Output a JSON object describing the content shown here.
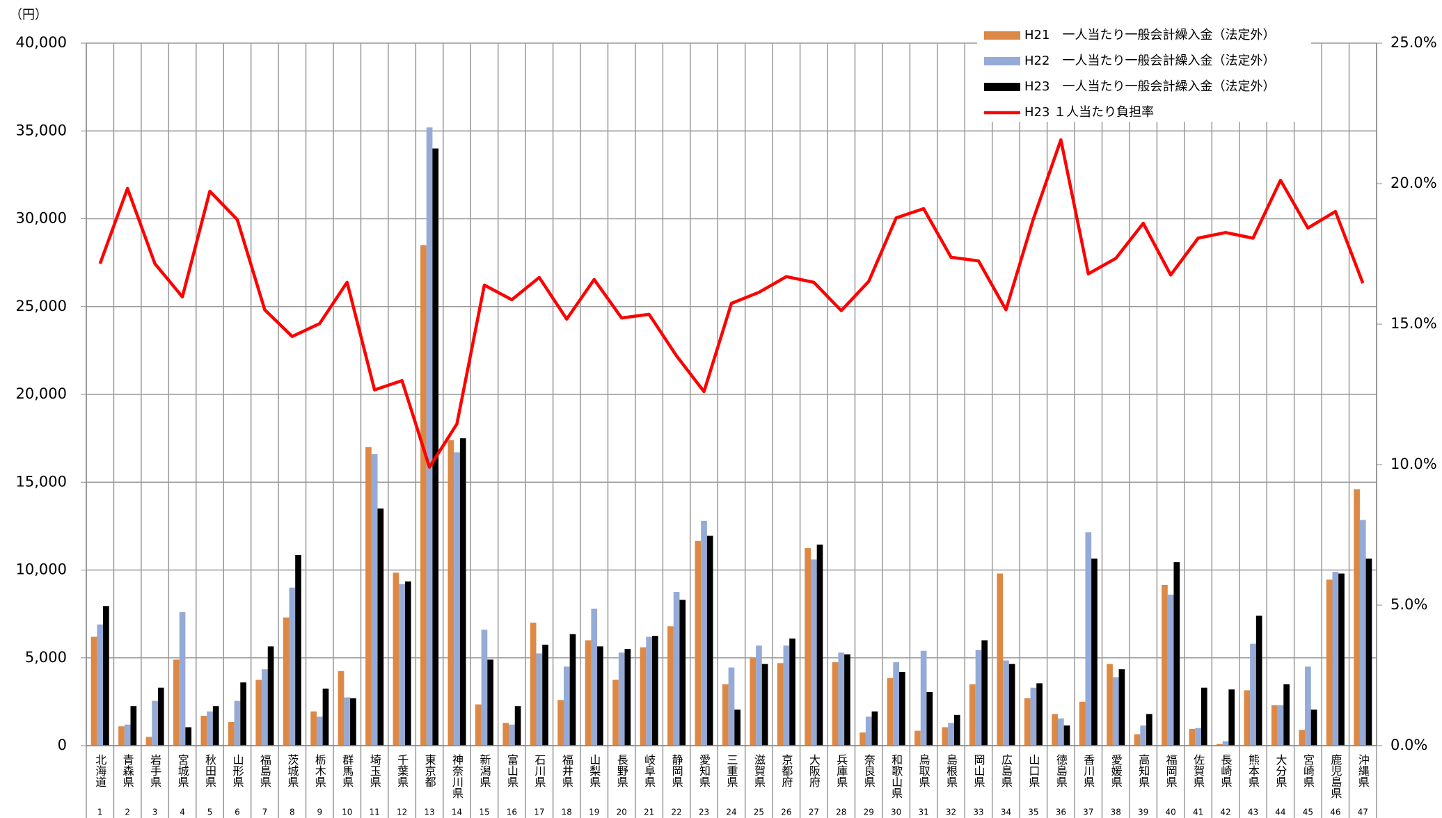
{
  "chart_data": {
    "type": "bar",
    "y_unit_label": "（円）",
    "categories": [
      "北海道",
      "青森県",
      "岩手県",
      "宮城県",
      "秋田県",
      "山形県",
      "福島県",
      "茨城県",
      "栃木県",
      "群馬県",
      "埼玉県",
      "千葉県",
      "東京都",
      "神奈川県",
      "新潟県",
      "富山県",
      "石川県",
      "福井県",
      "山梨県",
      "長野県",
      "岐阜県",
      "静岡県",
      "愛知県",
      "三重県",
      "滋賀県",
      "京都府",
      "大阪府",
      "兵庫県",
      "奈良県",
      "和歌山県",
      "鳥取県",
      "島根県",
      "岡山県",
      "広島県",
      "山口県",
      "徳島県",
      "香川県",
      "愛媛県",
      "高知県",
      "福岡県",
      "佐賀県",
      "長崎県",
      "熊本県",
      "大分県",
      "宮崎県",
      "鹿児島県",
      "沖縄県"
    ],
    "category_numbers": [
      1,
      2,
      3,
      4,
      5,
      6,
      7,
      8,
      9,
      10,
      11,
      12,
      13,
      14,
      15,
      16,
      17,
      18,
      19,
      20,
      21,
      22,
      23,
      24,
      25,
      26,
      27,
      28,
      29,
      30,
      31,
      32,
      33,
      34,
      35,
      36,
      37,
      38,
      39,
      40,
      41,
      42,
      43,
      44,
      45,
      46,
      47
    ],
    "series": [
      {
        "name": "H21　一人当たり一般会計繰入金（法定外）",
        "color": "#dd8844",
        "values": [
          6200,
          1100,
          500,
          4900,
          1700,
          1350,
          3750,
          7300,
          1950,
          4250,
          17000,
          9850,
          28500,
          17400,
          2350,
          1300,
          7000,
          2600,
          6000,
          3750,
          5600,
          6800,
          11650,
          3500,
          5000,
          4700,
          11250,
          4750,
          750,
          3850,
          850,
          1050,
          3500,
          9800,
          2700,
          1800,
          2500,
          4650,
          650,
          9150,
          950,
          100,
          3150,
          2300,
          900,
          9450,
          14600
        ]
      },
      {
        "name": "H22　一人当たり一般会計繰入金（法定外）",
        "color": "#95aad6",
        "values": [
          6900,
          1200,
          2550,
          7600,
          1950,
          2550,
          4350,
          9000,
          1650,
          2750,
          16600,
          9200,
          35200,
          16700,
          6600,
          1200,
          5250,
          4500,
          7800,
          5300,
          6200,
          8750,
          12800,
          4450,
          5700,
          5700,
          10600,
          5300,
          1650,
          4750,
          5400,
          1300,
          5450,
          4850,
          3300,
          1550,
          12150,
          3900,
          1150,
          8600,
          1000,
          250,
          5800,
          2300,
          4500,
          9900,
          12850
        ]
      },
      {
        "name": "H23　一人当たり一般会計繰入金（法定外）",
        "color": "#000000",
        "values": [
          7950,
          2250,
          3300,
          1050,
          2250,
          3600,
          5650,
          10850,
          3250,
          2700,
          13500,
          9350,
          34000,
          17500,
          4900,
          2250,
          5750,
          6350,
          5650,
          5500,
          6250,
          8300,
          11950,
          2050,
          4650,
          6100,
          11450,
          5200,
          1950,
          4200,
          3050,
          1750,
          6000,
          4650,
          3550,
          1150,
          10650,
          4350,
          1800,
          10450,
          3300,
          3200,
          7400,
          3500,
          2050,
          9800,
          10650
        ]
      },
      {
        "name": "H23 １人当たり負担率",
        "color": "#ff0000",
        "type": "line",
        "axis": "y2",
        "values": [
          17.15,
          19.83,
          17.15,
          15.97,
          19.73,
          18.72,
          15.51,
          14.56,
          15.02,
          16.49,
          12.66,
          12.99,
          9.91,
          11.45,
          16.39,
          15.87,
          16.66,
          15.18,
          16.59,
          15.22,
          15.35,
          13.87,
          12.6,
          15.74,
          16.13,
          16.69,
          16.49,
          15.48,
          16.52,
          18.78,
          19.11,
          17.38,
          17.25,
          15.51,
          18.75,
          21.56,
          16.79,
          17.34,
          18.59,
          16.75,
          18.06,
          18.26,
          18.06,
          20.12,
          18.42,
          19.01,
          16.46
        ]
      }
    ],
    "ylim": [
      0,
      40000
    ],
    "yticks": [
      0,
      {
        "value": 5000,
        "label": "5,000"
      },
      {
        "value": 10000,
        "label": "10,000"
      },
      {
        "value": 15000,
        "label": "15,000"
      },
      {
        "value": 20000,
        "label": "20,000"
      },
      {
        "value": 25000,
        "label": "25,000"
      },
      {
        "value": 30000,
        "label": "30,000"
      },
      {
        "value": 35000,
        "label": "35,000"
      },
      {
        "value": 40000,
        "label": "40,000"
      }
    ],
    "y2lim": [
      0,
      25
    ],
    "y2ticks": [
      {
        "value": 0,
        "label": "0.0%"
      },
      {
        "value": 5,
        "label": "5.0%"
      },
      {
        "value": 10,
        "label": "10.0%"
      },
      {
        "value": 15,
        "label": "15.0%"
      },
      {
        "value": 20,
        "label": "20.0%"
      },
      {
        "value": 25,
        "label": "25.0%"
      }
    ],
    "grid": true,
    "legend": "upper right"
  }
}
